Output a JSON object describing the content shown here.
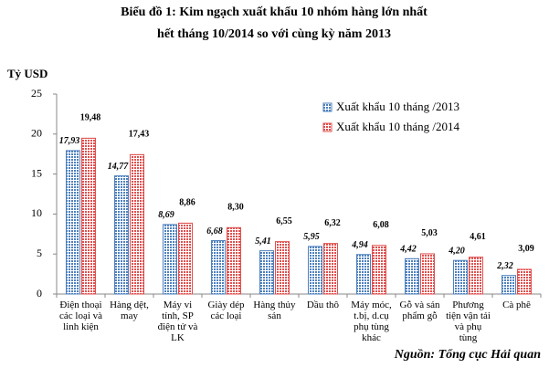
{
  "chart_data": {
    "type": "bar",
    "title": "Biểu đồ 1: Kim ngạch xuất khẩu 10 nhóm hàng lớn nhất",
    "subtitle": "hết tháng 10/2014 so với cùng kỳ năm 2013",
    "y_label": "Tỷ USD",
    "source": "Nguồn: Tổng cục Hải quan",
    "categories": [
      "Điện thoại\ncác loại và\nlinh kiện",
      "Hàng dệt,\nmay",
      "Máy vi\ntính, SP\nđiện tử và\nLK",
      "Giày dép\ncác loại",
      "Hàng thủy\nsản",
      "Dầu thô",
      "Máy móc,\nt.bị, d.cụ\nphụ tùng\nkhác",
      "Gỗ và sản\nphẩm gỗ",
      "Phương\ntiện vận tải\nvà phụ\ntùng",
      "Cà phê"
    ],
    "series": [
      {
        "name": "Xuất khẩu 10 tháng /2013",
        "color": "#4f81bd",
        "values": [
          17.93,
          14.77,
          8.69,
          6.68,
          5.41,
          5.95,
          4.94,
          4.42,
          4.2,
          2.32
        ],
        "value_labels": [
          "17,93",
          "14,77",
          "8,69",
          "6,68",
          "5,41",
          "5,95",
          "4,94",
          "4,42",
          "4,20",
          "2,32"
        ]
      },
      {
        "name": "Xuất khẩu 10 tháng /2014",
        "color": "#e0504f",
        "values": [
          19.48,
          17.43,
          8.86,
          8.3,
          6.55,
          6.32,
          6.08,
          5.03,
          4.61,
          3.09
        ],
        "value_labels": [
          "19,48",
          "17,43",
          "8,86",
          "8,30",
          "6,55",
          "6,32",
          "6,08",
          "5,03",
          "4,61",
          "3,09"
        ]
      }
    ],
    "ylim": [
      0,
      25
    ],
    "yticks": [
      0,
      5,
      10,
      15,
      20,
      25
    ],
    "grid": false
  }
}
